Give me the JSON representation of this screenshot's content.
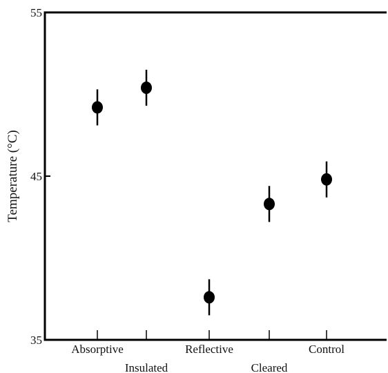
{
  "chart_data": {
    "type": "scatter",
    "title": "",
    "xlabel": "",
    "ylabel": "Temperature (°C)",
    "ylim": [
      35,
      55
    ],
    "yticks": [
      "35",
      "45",
      "55"
    ],
    "grid": false,
    "legend": "none",
    "categories": [
      "Absorptive",
      "Insulated",
      "Reflective",
      "Cleared",
      "Control"
    ],
    "values": [
      49.2,
      50.4,
      37.6,
      43.3,
      44.8
    ],
    "error": [
      1.1,
      1.1,
      1.1,
      1.1,
      1.1
    ],
    "colors": {
      "marker": "#000000",
      "axis": "#000000",
      "text": "#111111"
    }
  }
}
